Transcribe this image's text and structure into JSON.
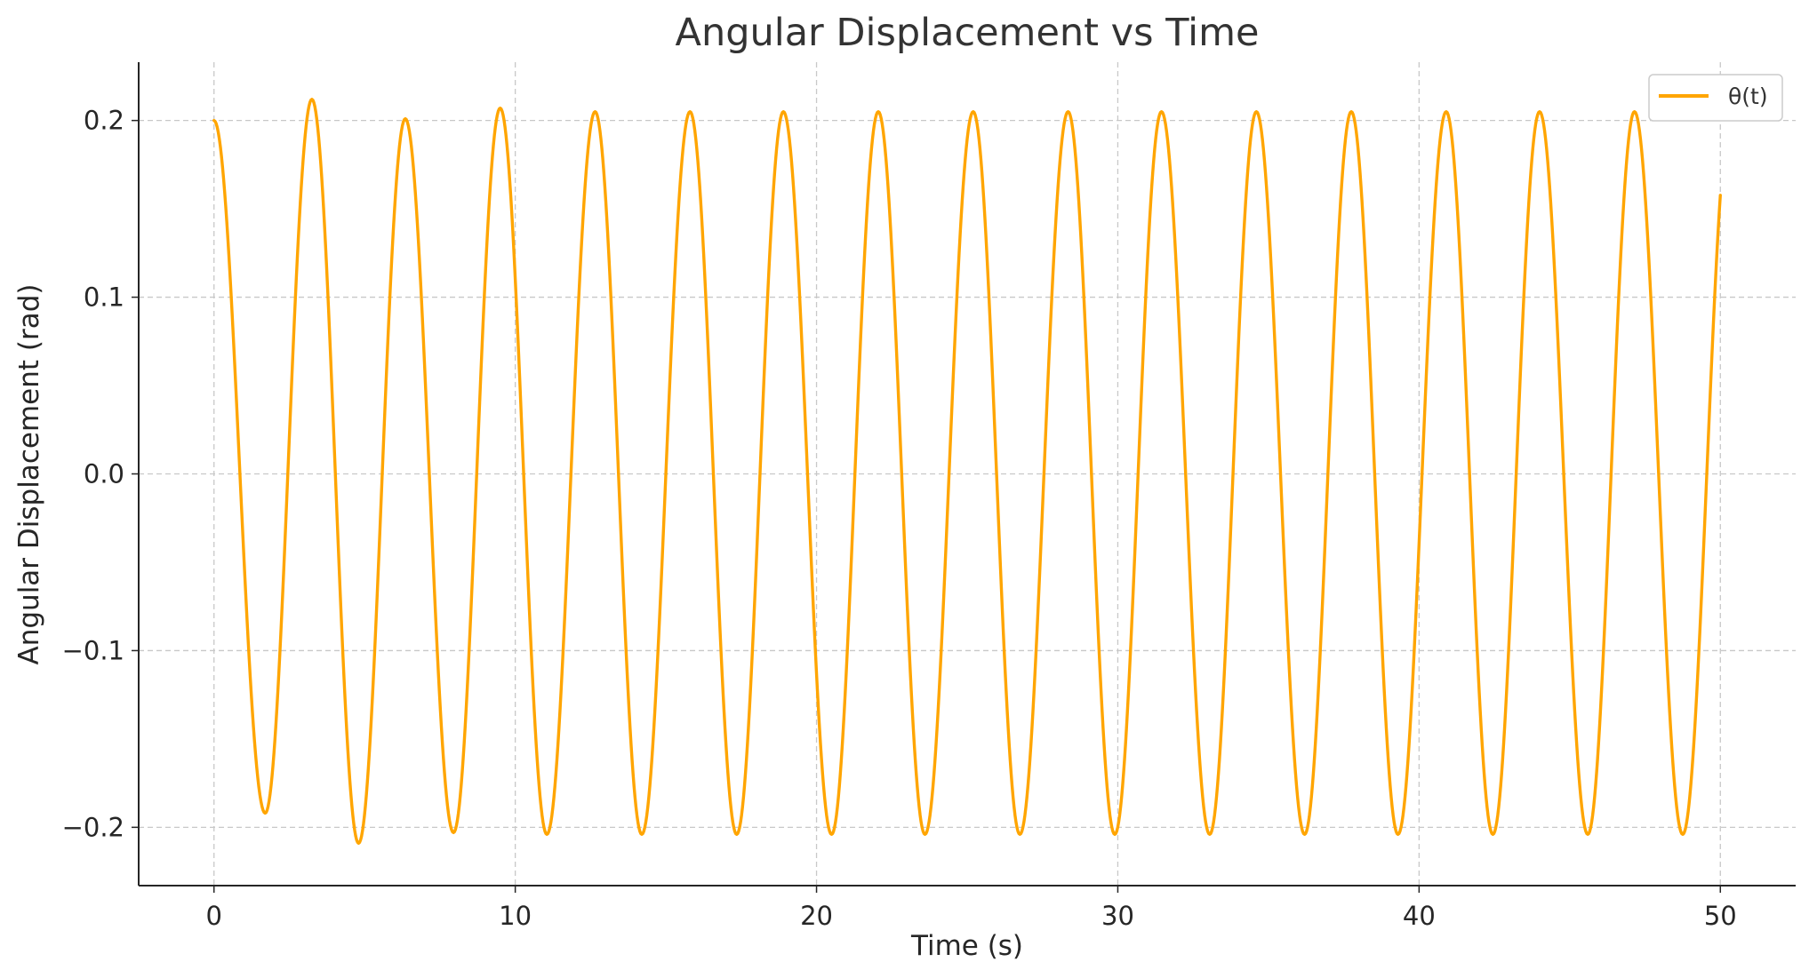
{
  "chart_data": {
    "type": "line",
    "title": "Angular Displacement vs Time",
    "xlabel": "Time (s)",
    "ylabel": "Angular Displacement (rad)",
    "xlim": [
      -2.5,
      52.5
    ],
    "ylim": [
      -0.233,
      0.233
    ],
    "xticks": [
      0,
      10,
      20,
      30,
      40,
      50
    ],
    "xtick_labels": [
      "0",
      "10",
      "20",
      "30",
      "40",
      "50"
    ],
    "yticks": [
      -0.2,
      -0.1,
      0.0,
      0.1,
      0.2
    ],
    "ytick_labels": [
      "−0.2",
      "−0.1",
      "0.0",
      "0.1",
      "0.2"
    ],
    "grid": true,
    "legend_position": "top-right",
    "series": [
      {
        "name": "θ(t)",
        "color": "#FFA500",
        "t_start": 0,
        "t_end": 50,
        "theta0": 0.2,
        "period_s": 3.14,
        "peaks": [
          [
            0.0,
            0.2
          ],
          [
            1.7,
            -0.192
          ],
          [
            3.25,
            0.212
          ],
          [
            4.8,
            -0.209
          ],
          [
            6.35,
            0.201
          ],
          [
            7.95,
            -0.203
          ],
          [
            9.5,
            0.207
          ],
          [
            11.05,
            -0.204
          ],
          [
            12.65,
            0.205
          ],
          [
            14.2,
            -0.204
          ],
          [
            15.8,
            0.205
          ],
          [
            17.35,
            -0.204
          ],
          [
            18.9,
            0.205
          ],
          [
            20.5,
            -0.204
          ],
          [
            22.05,
            0.205
          ],
          [
            23.6,
            -0.204
          ],
          [
            25.2,
            0.205
          ],
          [
            26.75,
            -0.204
          ],
          [
            28.35,
            0.205
          ],
          [
            29.9,
            -0.204
          ],
          [
            31.45,
            0.205
          ],
          [
            33.05,
            -0.204
          ],
          [
            34.6,
            0.205
          ],
          [
            36.2,
            -0.204
          ],
          [
            37.75,
            0.205
          ],
          [
            39.3,
            -0.204
          ],
          [
            40.9,
            0.205
          ],
          [
            42.45,
            -0.204
          ],
          [
            44.0,
            0.205
          ],
          [
            45.6,
            -0.204
          ],
          [
            47.15,
            0.205
          ],
          [
            48.75,
            -0.204
          ],
          [
            50.0,
            0.157
          ]
        ]
      }
    ]
  }
}
